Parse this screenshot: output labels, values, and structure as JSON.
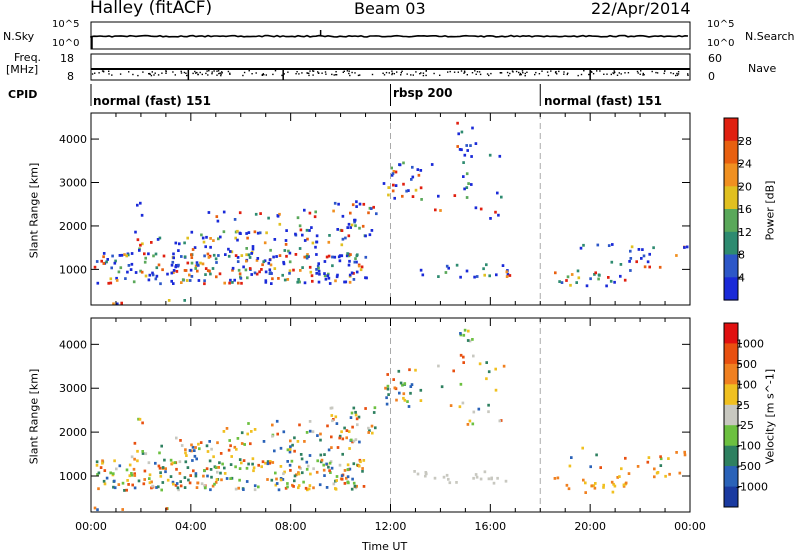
{
  "header": {
    "radar": "Halley (fitACF)",
    "beam": "Beam 03",
    "date": "22/Apr/2014"
  },
  "noise_panel": {
    "left_label": "N.Sky",
    "left_ticks": [
      "10^5",
      "10^0"
    ],
    "right_label": "N.Search",
    "right_ticks": [
      "10^5",
      "10^0"
    ]
  },
  "freq_panel": {
    "left_label": "Freq.",
    "left_unit": "[MHz]",
    "left_ticks": [
      "18",
      "8"
    ],
    "right_label": "Nave",
    "right_ticks": [
      "60",
      "0"
    ]
  },
  "cpid_panel": {
    "label": "CPID",
    "segments": [
      {
        "label": "normal (fast) 151",
        "start": 0,
        "end": 12
      },
      {
        "label": "rbsp 200",
        "start": 12,
        "end": 18
      },
      {
        "label": "normal (fast) 151",
        "start": 18,
        "end": 24
      }
    ]
  },
  "chart_data": [
    {
      "type": "heatmap",
      "panel": "power",
      "ylabel": "Slant Range [km]",
      "xlim": [
        0,
        24
      ],
      "ylim": [
        180,
        4600
      ],
      "yticks": [
        1000,
        2000,
        3000,
        4000
      ],
      "colorbar": {
        "label": "Power [dB]",
        "ticks": [
          "4",
          "8",
          "12",
          "16",
          "20",
          "24",
          "28"
        ],
        "colors": [
          "#1a2ad8",
          "#2d57c8",
          "#2e8b70",
          "#5aa85a",
          "#e0c020",
          "#f09020",
          "#e86010",
          "#e02010"
        ]
      }
    },
    {
      "type": "heatmap",
      "panel": "velocity",
      "ylabel": "Slant Range [km]",
      "xlabel": "Time UT",
      "xlim": [
        0,
        24
      ],
      "ylim": [
        180,
        4600
      ],
      "yticks": [
        1000,
        2000,
        3000,
        4000
      ],
      "xticks": [
        0,
        4,
        8,
        12,
        16,
        20,
        24
      ],
      "xticklabels": [
        "00:00",
        "04:00",
        "08:00",
        "12:00",
        "16:00",
        "20:00",
        "00:00"
      ],
      "colorbar": {
        "label": "Velocity [m s^-1]",
        "ticks": [
          "1000",
          "500",
          "100",
          "25",
          "-25",
          "-100",
          "-500",
          "-1000"
        ],
        "colors": [
          "#1a3aa0",
          "#2a62b8",
          "#2e8060",
          "#6cc040",
          "#c8c8c0",
          "#f0c020",
          "#f08020",
          "#e85010",
          "#e01010"
        ]
      }
    }
  ]
}
